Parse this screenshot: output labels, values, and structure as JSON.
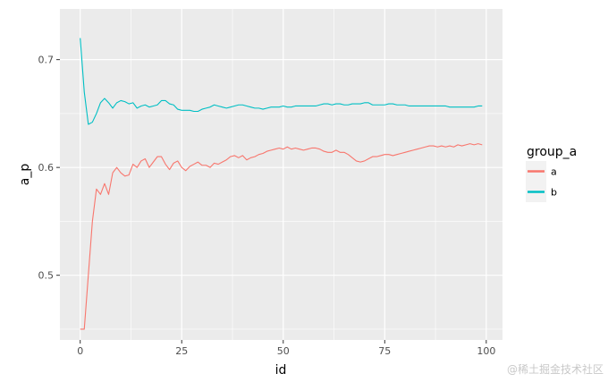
{
  "chart_data": {
    "type": "line",
    "xlabel": "id",
    "ylabel": "a_p",
    "xlim": [
      -5,
      104
    ],
    "ylim": [
      0.44,
      0.747
    ],
    "x_ticks": [
      0,
      25,
      50,
      75,
      100
    ],
    "x_tick_labels": [
      "0",
      "25",
      "50",
      "75",
      "100"
    ],
    "y_ticks": [
      0.5,
      0.6,
      0.7
    ],
    "y_tick_labels": [
      "0.5",
      "0.6",
      "0.7"
    ],
    "grid": true,
    "legend": {
      "title": "group_a",
      "placement": "right"
    },
    "series": [
      {
        "name": "a",
        "color": "#f8766d",
        "x": [
          0,
          1,
          2,
          3,
          4,
          5,
          6,
          7,
          8,
          9,
          10,
          11,
          12,
          13,
          14,
          15,
          16,
          17,
          18,
          19,
          20,
          21,
          22,
          23,
          24,
          25,
          26,
          27,
          28,
          29,
          30,
          31,
          32,
          33,
          34,
          35,
          36,
          37,
          38,
          39,
          40,
          41,
          42,
          43,
          44,
          45,
          46,
          47,
          48,
          49,
          50,
          51,
          52,
          53,
          54,
          55,
          56,
          57,
          58,
          59,
          60,
          61,
          62,
          63,
          64,
          65,
          66,
          67,
          68,
          69,
          70,
          71,
          72,
          73,
          74,
          75,
          76,
          77,
          78,
          79,
          80,
          81,
          82,
          83,
          84,
          85,
          86,
          87,
          88,
          89,
          90,
          91,
          92,
          93,
          94,
          95,
          96,
          97,
          98,
          99
        ],
        "values": [
          0.45,
          0.45,
          0.5,
          0.55,
          0.58,
          0.575,
          0.585,
          0.575,
          0.595,
          0.6,
          0.595,
          0.592,
          0.593,
          0.603,
          0.6,
          0.606,
          0.608,
          0.6,
          0.605,
          0.61,
          0.61,
          0.603,
          0.598,
          0.604,
          0.606,
          0.6,
          0.597,
          0.601,
          0.603,
          0.605,
          0.602,
          0.602,
          0.6,
          0.604,
          0.603,
          0.605,
          0.607,
          0.61,
          0.611,
          0.609,
          0.611,
          0.607,
          0.609,
          0.61,
          0.612,
          0.613,
          0.615,
          0.616,
          0.617,
          0.618,
          0.617,
          0.619,
          0.617,
          0.618,
          0.617,
          0.616,
          0.617,
          0.618,
          0.618,
          0.617,
          0.615,
          0.614,
          0.614,
          0.616,
          0.614,
          0.614,
          0.612,
          0.609,
          0.606,
          0.605,
          0.606,
          0.608,
          0.61,
          0.61,
          0.611,
          0.612,
          0.612,
          0.611,
          0.612,
          0.613,
          0.614,
          0.615,
          0.616,
          0.617,
          0.618,
          0.619,
          0.62,
          0.62,
          0.619,
          0.62,
          0.619,
          0.62,
          0.619,
          0.621,
          0.62,
          0.621,
          0.622,
          0.621,
          0.622,
          0.621
        ]
      },
      {
        "name": "b",
        "color": "#00bfc4",
        "x": [
          0,
          1,
          2,
          3,
          4,
          5,
          6,
          7,
          8,
          9,
          10,
          11,
          12,
          13,
          14,
          15,
          16,
          17,
          18,
          19,
          20,
          21,
          22,
          23,
          24,
          25,
          26,
          27,
          28,
          29,
          30,
          31,
          32,
          33,
          34,
          35,
          36,
          37,
          38,
          39,
          40,
          41,
          42,
          43,
          44,
          45,
          46,
          47,
          48,
          49,
          50,
          51,
          52,
          53,
          54,
          55,
          56,
          57,
          58,
          59,
          60,
          61,
          62,
          63,
          64,
          65,
          66,
          67,
          68,
          69,
          70,
          71,
          72,
          73,
          74,
          75,
          76,
          77,
          78,
          79,
          80,
          81,
          82,
          83,
          84,
          85,
          86,
          87,
          88,
          89,
          90,
          91,
          92,
          93,
          94,
          95,
          96,
          97,
          98,
          99
        ],
        "values": [
          0.72,
          0.67,
          0.64,
          0.642,
          0.65,
          0.66,
          0.664,
          0.66,
          0.655,
          0.66,
          0.662,
          0.661,
          0.659,
          0.66,
          0.655,
          0.657,
          0.658,
          0.656,
          0.657,
          0.658,
          0.662,
          0.662,
          0.659,
          0.658,
          0.654,
          0.653,
          0.653,
          0.653,
          0.652,
          0.652,
          0.654,
          0.655,
          0.656,
          0.658,
          0.657,
          0.656,
          0.655,
          0.656,
          0.657,
          0.658,
          0.658,
          0.657,
          0.656,
          0.655,
          0.655,
          0.654,
          0.655,
          0.656,
          0.656,
          0.656,
          0.657,
          0.656,
          0.656,
          0.657,
          0.657,
          0.657,
          0.657,
          0.657,
          0.657,
          0.658,
          0.659,
          0.659,
          0.658,
          0.659,
          0.659,
          0.658,
          0.658,
          0.659,
          0.659,
          0.659,
          0.66,
          0.66,
          0.658,
          0.658,
          0.658,
          0.658,
          0.659,
          0.659,
          0.658,
          0.658,
          0.658,
          0.657,
          0.657,
          0.657,
          0.657,
          0.657,
          0.657,
          0.657,
          0.657,
          0.657,
          0.657,
          0.656,
          0.656,
          0.656,
          0.656,
          0.656,
          0.656,
          0.656,
          0.657,
          0.657
        ]
      }
    ]
  },
  "watermark": "@稀土掘金技术社区"
}
